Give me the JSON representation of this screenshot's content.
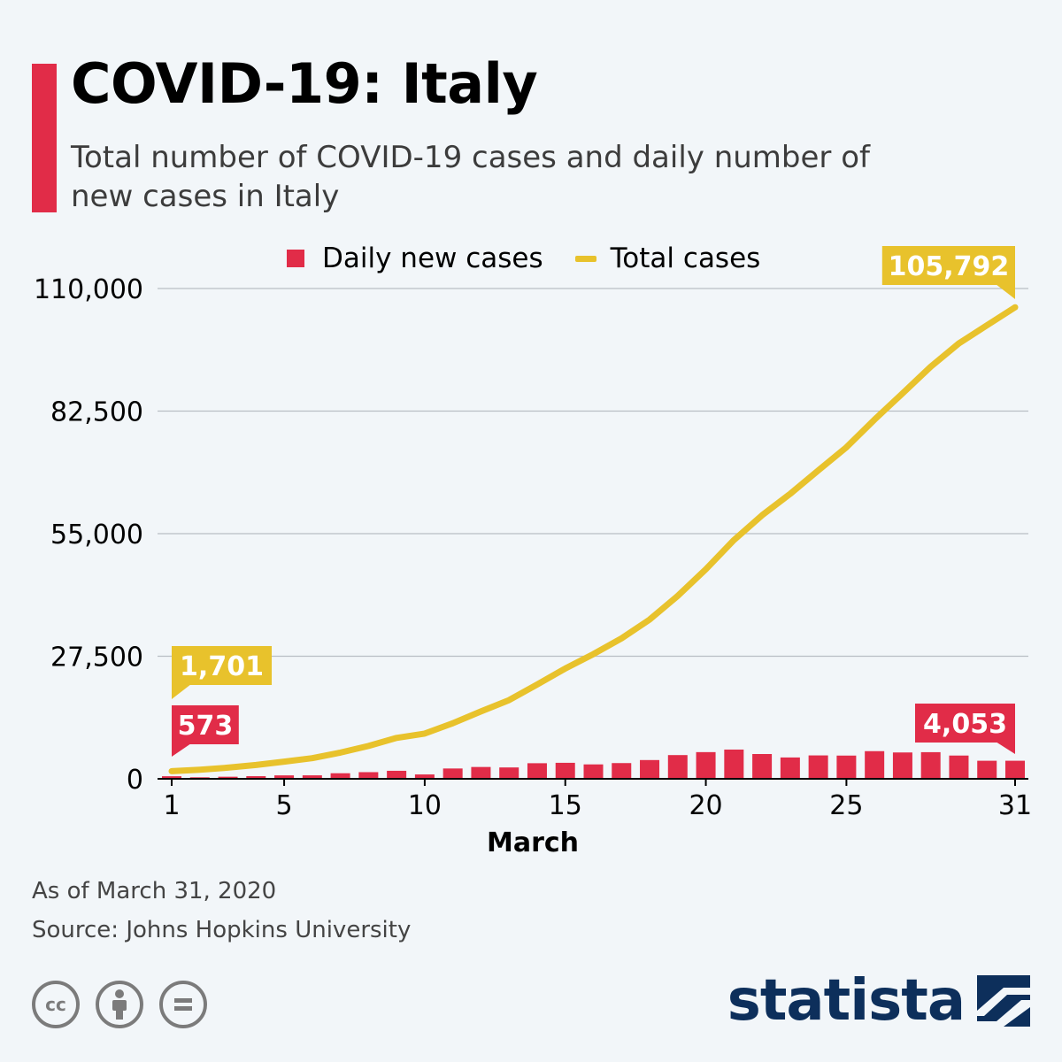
{
  "header": {
    "title": "COVID-19: Italy",
    "subtitle": "Total number of COVID-19 cases and daily number of new cases in Italy"
  },
  "legend": {
    "daily_label": "Daily new cases",
    "total_label": "Total cases"
  },
  "colors": {
    "accent": "#e12c48",
    "daily": "#e12c48",
    "total": "#e8c22c",
    "brand": "#0d2f5b",
    "background": "#f2f6f9"
  },
  "chart_data": {
    "type": "bar+line",
    "xlabel": "March",
    "ylabel": "",
    "x": [
      1,
      2,
      3,
      4,
      5,
      6,
      7,
      8,
      9,
      10,
      11,
      12,
      13,
      14,
      15,
      16,
      17,
      18,
      19,
      20,
      21,
      22,
      23,
      24,
      25,
      26,
      27,
      28,
      29,
      30,
      31
    ],
    "xticks": [
      "1",
      "5",
      "10",
      "15",
      "20",
      "25",
      "31"
    ],
    "xtick_values": [
      1,
      5,
      10,
      15,
      20,
      25,
      31
    ],
    "yticks": [
      "0",
      "27,500",
      "55,000",
      "82,500",
      "110,000"
    ],
    "ytick_values": [
      0,
      27500,
      55000,
      82500,
      110000
    ],
    "ylim": [
      0,
      110000
    ],
    "grid": true,
    "legend_position": "top",
    "series": [
      {
        "name": "Daily new cases",
        "kind": "bar",
        "values": [
          573,
          335,
          466,
          587,
          769,
          778,
          1247,
          1492,
          1797,
          977,
          2313,
          2651,
          2547,
          3497,
          3590,
          3233,
          3526,
          4207,
          5322,
          5986,
          6557,
          5560,
          4789,
          5249,
          5210,
          6203,
          5909,
          5974,
          5217,
          4050,
          4053
        ]
      },
      {
        "name": "Total cases",
        "kind": "line",
        "values": [
          1701,
          2036,
          2502,
          3089,
          3858,
          4636,
          5883,
          7375,
          9172,
          10149,
          12462,
          15113,
          17660,
          21157,
          24747,
          27980,
          31506,
          35713,
          41035,
          47021,
          53578,
          59138,
          63927,
          69176,
          74386,
          80589,
          86498,
          92472,
          97689,
          101739,
          105792
        ]
      }
    ],
    "annotations": [
      {
        "label": "1,701",
        "series": "Total cases",
        "x": 1
      },
      {
        "label": "573",
        "series": "Daily new cases",
        "x": 1
      },
      {
        "label": "105,792",
        "series": "Total cases",
        "x": 31
      },
      {
        "label": "4,053",
        "series": "Daily new cases",
        "x": 31
      }
    ]
  },
  "footer": {
    "as_of": "As of March 31, 2020",
    "source": "Source: Johns Hopkins University"
  },
  "license_icons": [
    "cc-icon",
    "attribution-icon",
    "no-derivatives-icon"
  ],
  "brand": {
    "name": "statista"
  }
}
